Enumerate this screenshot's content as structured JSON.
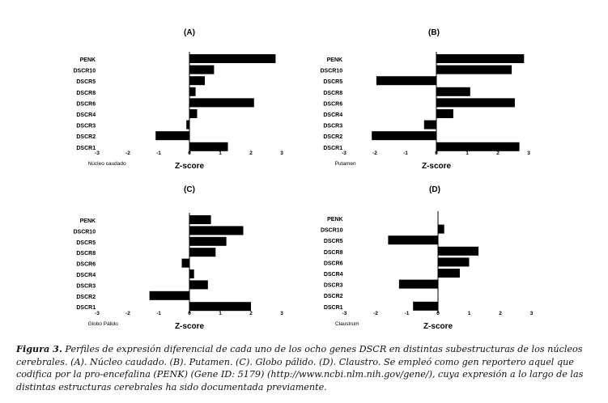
{
  "chart_data": [
    {
      "type": "bar",
      "orientation": "horizontal",
      "title": "(A)",
      "region": "Núcleo caudado",
      "xlabel": "Z-score",
      "xlim": [
        -3,
        3
      ],
      "xticks": [
        -3,
        -2,
        -1,
        0,
        1,
        2,
        3
      ],
      "categories": [
        "PENK",
        "DSCR10",
        "DSCR5",
        "DSCR8",
        "DSCR6",
        "DSCR4",
        "DSCR3",
        "DSCR2",
        "DSCR1"
      ],
      "values": [
        2.8,
        0.8,
        0.5,
        0.2,
        2.1,
        0.25,
        -0.1,
        -1.1,
        1.25
      ],
      "grid": false,
      "legend": "none"
    },
    {
      "type": "bar",
      "orientation": "horizontal",
      "title": "(B)",
      "region": "Putamen",
      "xlabel": "Z-score",
      "xlim": [
        -3,
        3
      ],
      "xticks": [
        -3,
        -2,
        -1,
        0,
        1,
        2,
        3
      ],
      "categories": [
        "PENK",
        "DSCR10",
        "DSCR5",
        "DSCR8",
        "DSCR6",
        "DSCR4",
        "DSCR3",
        "DSCR2",
        "DSCR1"
      ],
      "values": [
        2.85,
        2.45,
        -1.95,
        1.1,
        2.55,
        0.55,
        -0.4,
        -2.1,
        2.7
      ],
      "grid": false,
      "legend": "none"
    },
    {
      "type": "bar",
      "orientation": "horizontal",
      "title": "(C)",
      "region": "Globo Pálido",
      "xlabel": "Z-score",
      "xlim": [
        -3,
        3
      ],
      "xticks": [
        -3,
        -2,
        -1,
        0,
        1,
        2,
        3
      ],
      "categories": [
        "PENK",
        "DSCR10",
        "DSCR5",
        "DSCR8",
        "DSCR6",
        "DSCR4",
        "DSCR3",
        "DSCR2",
        "DSCR1"
      ],
      "values": [
        0.7,
        1.75,
        1.2,
        0.85,
        -0.25,
        0.15,
        0.6,
        -1.3,
        2.0
      ],
      "grid": false,
      "legend": "none"
    },
    {
      "type": "bar",
      "orientation": "horizontal",
      "title": "(D)",
      "region": "Claustrum",
      "xlabel": "Z-score",
      "xlim": [
        -3,
        3
      ],
      "xticks": [
        -3,
        -2,
        -1,
        0,
        1,
        2,
        3
      ],
      "categories": [
        "PENK",
        "DSCR10",
        "DSCR5",
        "DSCR8",
        "DSCR6",
        "DSCR4",
        "DSCR3",
        "DSCR2",
        "DSCR1"
      ],
      "values": [
        0.0,
        0.2,
        -1.6,
        1.3,
        1.0,
        0.7,
        -1.25,
        0.0,
        -0.8
      ],
      "grid": false,
      "legend": "none"
    }
  ],
  "caption": {
    "label": "Figura 3.",
    "text": " Perfiles de expresión diferencial de cada uno de los ocho genes DSCR en distintas subestructuras de los núcleos cerebrales. (A). Núcleo caudado. (B). Putamen. (C). Globo pálido. (D). Claustro. Se empleó como gen reportero aquel que codifica por la pro-encefalina (PENK) (Gene ID: 5179) (http://www.ncbi.nlm.nih.gov/gene/), cuya expresión a lo largo de las distintas estructuras cerebrales ha sido documentada previamente."
  },
  "colors": {
    "bar": "#000000",
    "axis": "#000000",
    "text": "#111111"
  }
}
